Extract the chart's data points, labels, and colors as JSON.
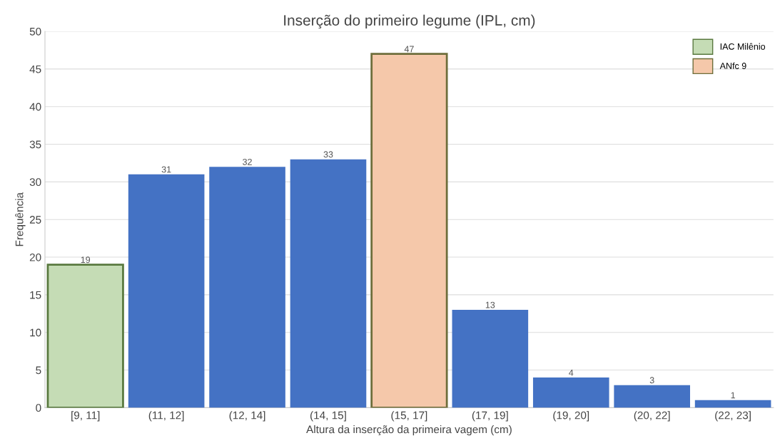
{
  "chart_data": {
    "type": "bar",
    "title": "Inserção do primeiro legume (IPL, cm)",
    "xlabel": "Altura da inserção da primeira vagem (cm)",
    "ylabel": "Frequência",
    "categories": [
      "[9, 11]",
      "(11, 12]",
      "(12, 14]",
      "(14, 15]",
      "(15, 17]",
      "(17, 19]",
      "(19, 20]",
      "(20, 22]",
      "(22, 23]"
    ],
    "stacked": true,
    "series": [
      {
        "name": "IAC Milênio",
        "color": "#c5dcb5",
        "values": [
          19,
          null,
          null,
          null,
          null,
          null,
          null,
          null,
          null
        ]
      },
      {
        "name": "ANfc 9",
        "color": "#f5c8aa",
        "values": [
          null,
          null,
          null,
          null,
          47,
          null,
          null,
          null,
          null
        ]
      },
      {
        "color": "#4472c4",
        "values": [
          null,
          31,
          32,
          33,
          null,
          13,
          4,
          3,
          1
        ]
      }
    ],
    "data_labels": true,
    "ylim": [
      0,
      50
    ],
    "yticks": [
      0,
      5,
      10,
      15,
      20,
      25,
      30,
      35,
      40,
      45,
      50
    ],
    "grid": "y",
    "legend": "top right"
  }
}
